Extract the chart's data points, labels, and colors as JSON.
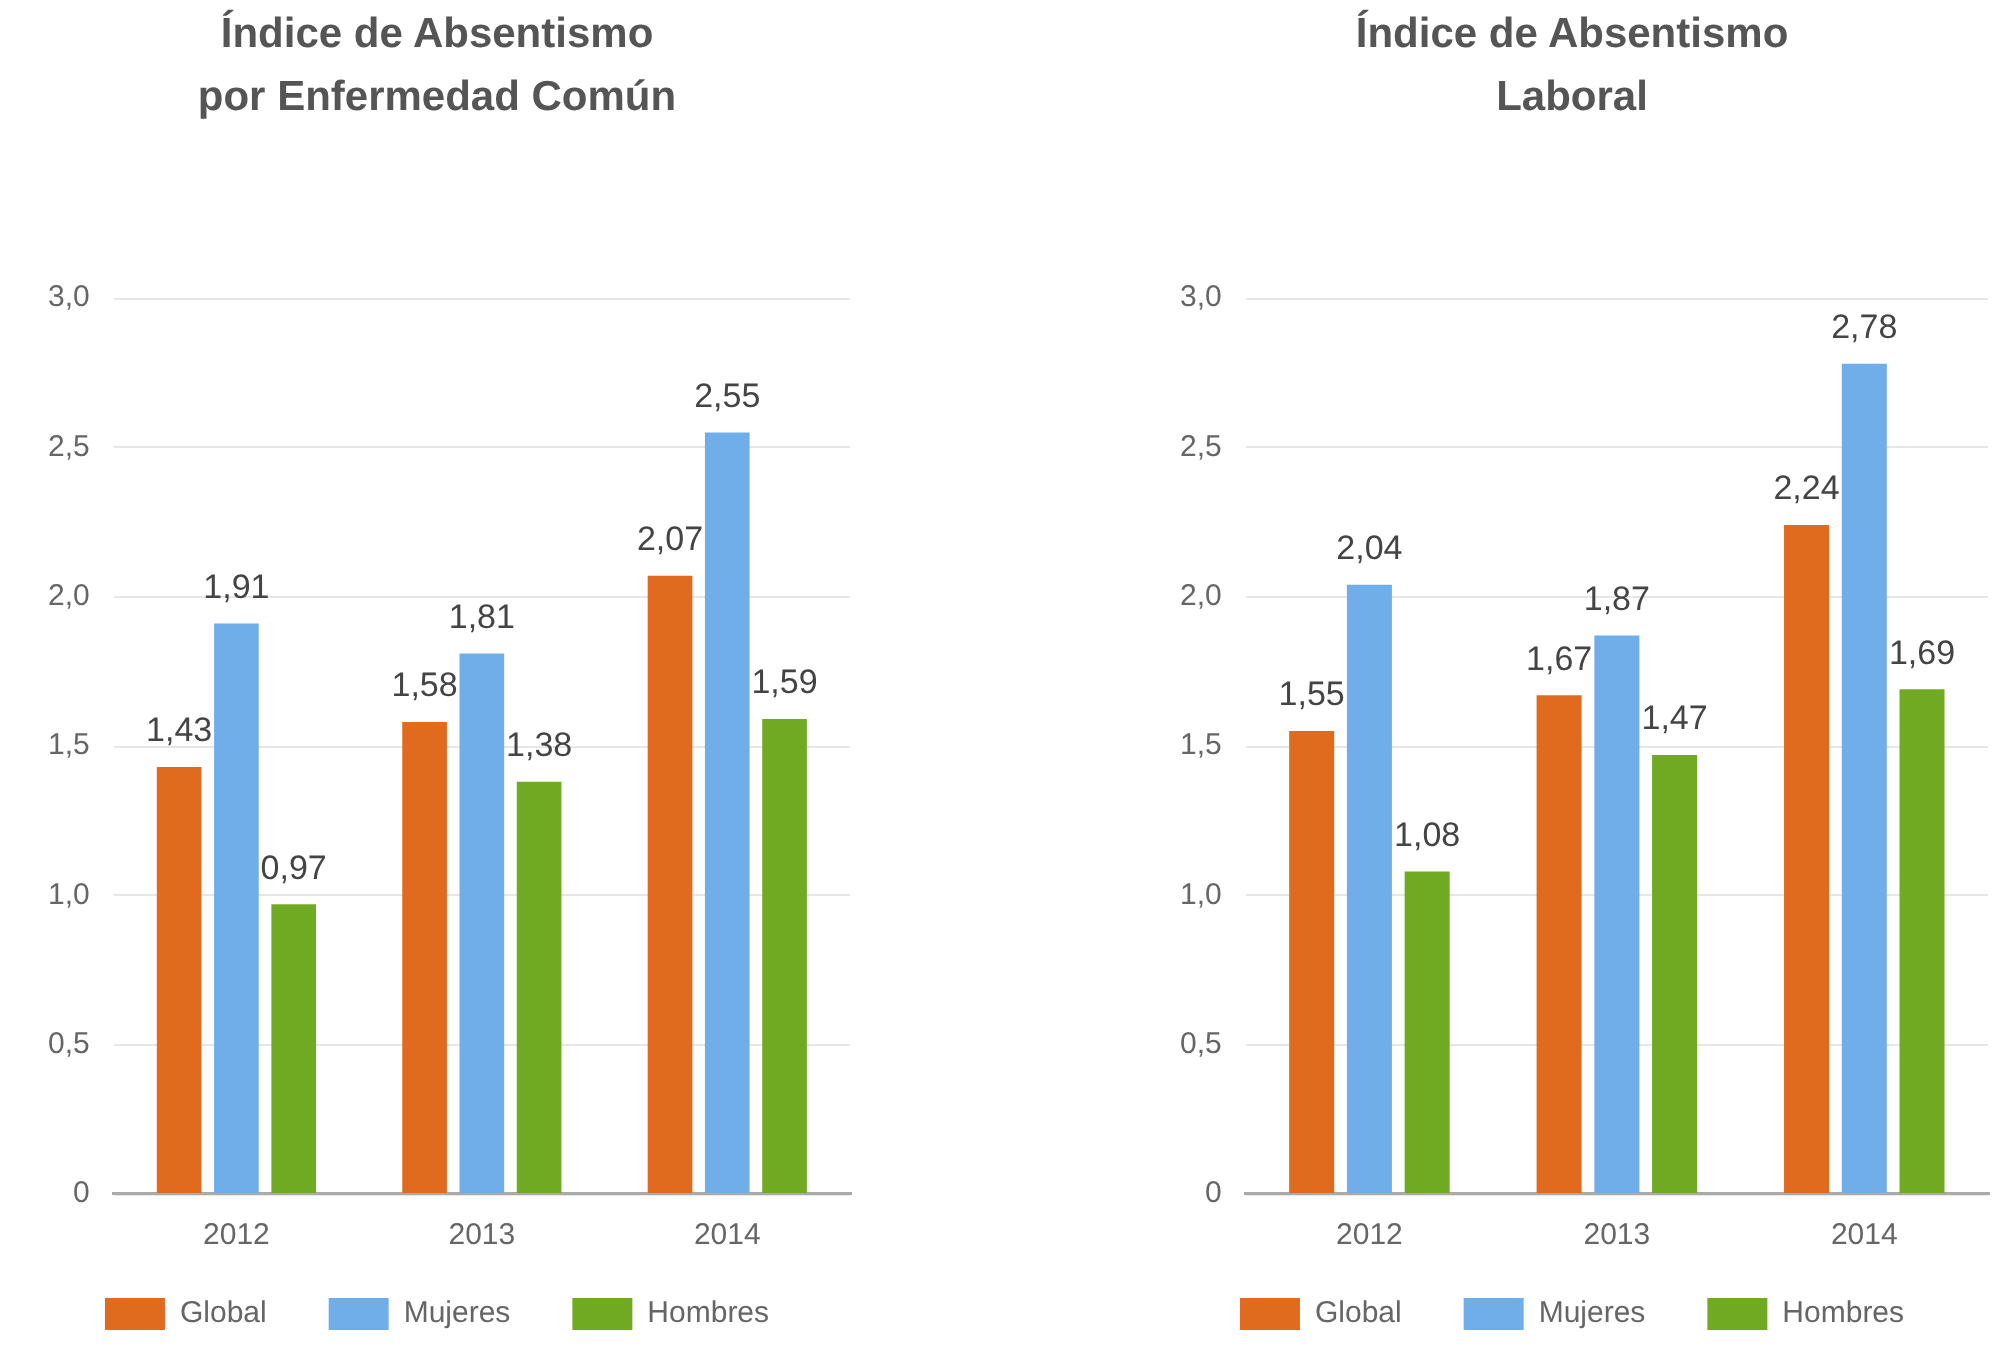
{
  "chart_data": [
    {
      "type": "bar",
      "title": "Índice de Absentismo por Enfermedad Común",
      "categories": [
        "2012",
        "2013",
        "2014"
      ],
      "series": [
        {
          "name": "Global",
          "color": "#e06a1e",
          "values": [
            1.43,
            1.58,
            2.07
          ],
          "value_labels": [
            "1,43",
            "1,58",
            "2,07"
          ]
        },
        {
          "name": "Mujeres",
          "color": "#70aeea",
          "values": [
            1.91,
            1.81,
            2.55
          ],
          "value_labels": [
            "1,91",
            "1,81",
            "2,55"
          ]
        },
        {
          "name": "Hombres",
          "color": "#70aa22",
          "values": [
            0.97,
            1.38,
            1.59
          ],
          "value_labels": [
            "0,97",
            "1,38",
            "1,59"
          ]
        }
      ],
      "ylim": [
        0,
        3
      ],
      "yticks": [
        0,
        {
          "value": 0.5,
          "label": "0,5"
        },
        {
          "value": 1,
          "label": "1,0"
        },
        {
          "value": 1.5,
          "label": "1,5"
        },
        {
          "value": 2,
          "label": "2,0"
        },
        {
          "value": 2.5,
          "label": "2,5"
        },
        {
          "value": 3,
          "label": "3,0"
        }
      ],
      "grid": "y",
      "legend": "bottom"
    },
    {
      "type": "bar",
      "title": "Índice de Absentismo Laboral",
      "categories": [
        "2012",
        "2013",
        "2014"
      ],
      "series": [
        {
          "name": "Global",
          "color": "#e06a1e",
          "values": [
            1.55,
            1.67,
            2.24
          ],
          "value_labels": [
            "1,55",
            "1,67",
            "2,24"
          ]
        },
        {
          "name": "Mujeres",
          "color": "#70aeea",
          "values": [
            2.04,
            1.87,
            2.78
          ],
          "value_labels": [
            "2,04",
            "1,87",
            "2,78"
          ]
        },
        {
          "name": "Hombres",
          "color": "#70aa22",
          "values": [
            1.08,
            1.47,
            1.69
          ],
          "value_labels": [
            "1,08",
            "1,47",
            "1,69"
          ]
        }
      ],
      "ylim": [
        0,
        3
      ],
      "yticks": [
        0,
        {
          "value": 0.5,
          "label": "0,5"
        },
        {
          "value": 1,
          "label": "1,0"
        },
        {
          "value": 1.5,
          "label": "1,5"
        },
        {
          "value": 2,
          "label": "2,0"
        },
        {
          "value": 2.5,
          "label": "2,5"
        },
        {
          "value": 3,
          "label": "3,0"
        }
      ],
      "grid": "y",
      "legend": "bottom"
    }
  ]
}
